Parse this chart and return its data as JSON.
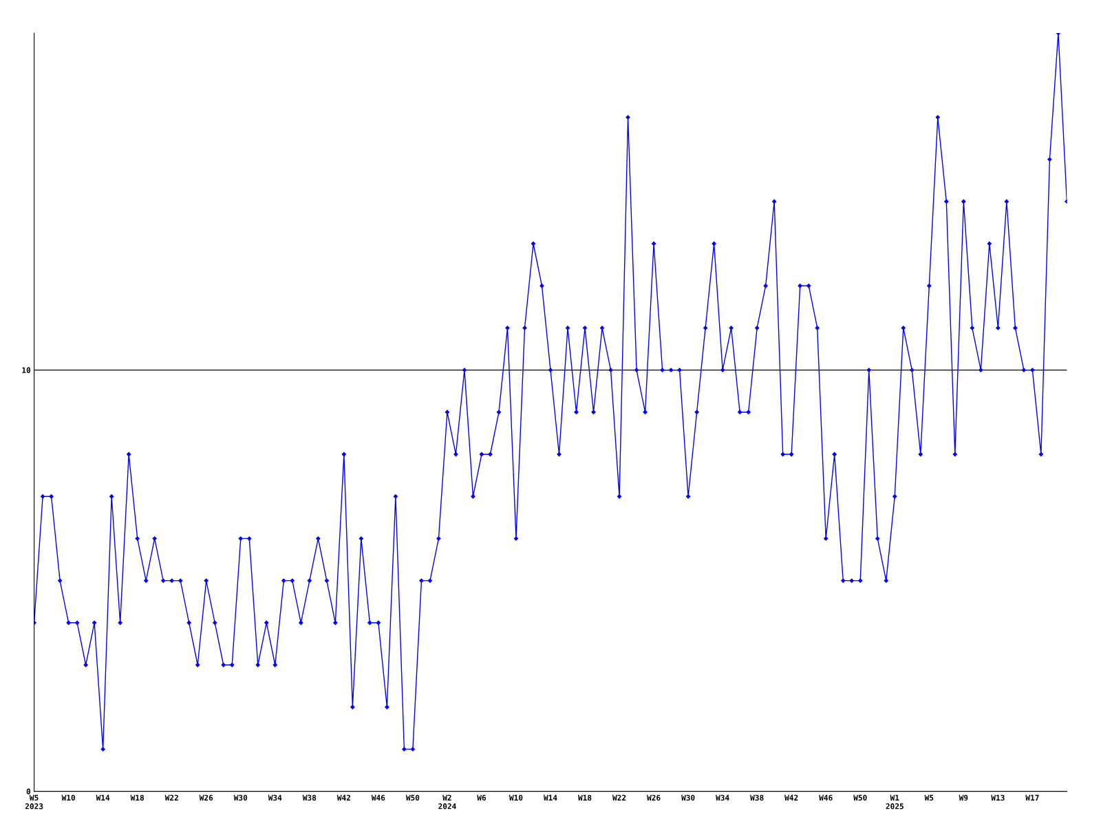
{
  "chart_data": {
    "type": "line",
    "categories": [
      "W5\n2023",
      null,
      null,
      null,
      "W10",
      null,
      null,
      null,
      "W14",
      null,
      null,
      null,
      "W18",
      null,
      null,
      null,
      "W22",
      null,
      null,
      null,
      "W26",
      null,
      null,
      null,
      "W30",
      null,
      null,
      null,
      "W34",
      null,
      null,
      null,
      "W38",
      null,
      null,
      null,
      "W42",
      null,
      null,
      null,
      "W46",
      null,
      null,
      null,
      "W50",
      null,
      null,
      null,
      "W2\n2024",
      null,
      null,
      null,
      "W6",
      null,
      null,
      null,
      "W10",
      null,
      null,
      null,
      "W14",
      null,
      null,
      null,
      "W18",
      null,
      null,
      null,
      "W22",
      null,
      null,
      null,
      "W26",
      null,
      null,
      null,
      "W30",
      null,
      null,
      null,
      "W34",
      null,
      null,
      null,
      "W38",
      null,
      null,
      null,
      "W42",
      null,
      null,
      null,
      "W46",
      null,
      null,
      null,
      "W50",
      null,
      null,
      null,
      "W1\n2025",
      null,
      null,
      null,
      "W5",
      null,
      null,
      null,
      "W9",
      null,
      null,
      null,
      "W13",
      null,
      null,
      null,
      "W17",
      null,
      null,
      null,
      null
    ],
    "series": [
      {
        "color": "#0000ff",
        "values": [
          4,
          7,
          7,
          5,
          4,
          4,
          3,
          4,
          1,
          7,
          4,
          8,
          6,
          5,
          6,
          5,
          5,
          5,
          4,
          3,
          5,
          4,
          3,
          3,
          6,
          6,
          3,
          4,
          3,
          5,
          5,
          4,
          5,
          6,
          5,
          4,
          8,
          2,
          6,
          4,
          4,
          2,
          7,
          1,
          1,
          5,
          5,
          6,
          9,
          8,
          10,
          7,
          8,
          8,
          9,
          11,
          6,
          11,
          13,
          12,
          10,
          8,
          11,
          9,
          11,
          9,
          11,
          10,
          7,
          16,
          10,
          9,
          13,
          10,
          10,
          10,
          7,
          9,
          11,
          13,
          10,
          11,
          9,
          9,
          11,
          12,
          14,
          8,
          8,
          12,
          12,
          11,
          6,
          8,
          5,
          5,
          5,
          10,
          6,
          5,
          7,
          11,
          10,
          8,
          12,
          16,
          14,
          8,
          14,
          11,
          10,
          13,
          11,
          14,
          11,
          10,
          10,
          8,
          15,
          18,
          14
        ]
      }
    ],
    "ylim": [
      0,
      18
    ],
    "yticks": [
      0,
      10
    ],
    "grid": "y",
    "marker": "diamond",
    "line_style": "solid",
    "legend": false
  }
}
